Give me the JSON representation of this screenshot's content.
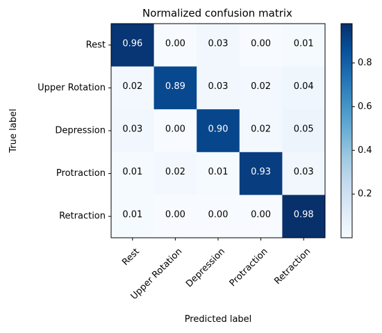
{
  "chart_data": {
    "type": "heatmap",
    "title": "Normalized confusion matrix",
    "xlabel": "Predicted label",
    "ylabel": "True label",
    "x_categories": [
      "Rest",
      "Upper Rotation",
      "Depression",
      "Protraction",
      "Retraction"
    ],
    "y_categories": [
      "Rest",
      "Upper Rotation",
      "Depression",
      "Protraction",
      "Retraction"
    ],
    "values": [
      [
        0.96,
        0.0,
        0.03,
        0.0,
        0.01
      ],
      [
        0.02,
        0.89,
        0.03,
        0.02,
        0.04
      ],
      [
        0.03,
        0.0,
        0.9,
        0.02,
        0.05
      ],
      [
        0.01,
        0.02,
        0.01,
        0.93,
        0.03
      ],
      [
        0.01,
        0.0,
        0.0,
        0.0,
        0.98
      ]
    ],
    "value_labels": [
      [
        "0.96",
        "0.00",
        "0.03",
        "0.00",
        "0.01"
      ],
      [
        "0.02",
        "0.89",
        "0.03",
        "0.02",
        "0.04"
      ],
      [
        "0.03",
        "0.00",
        "0.90",
        "0.02",
        "0.05"
      ],
      [
        "0.01",
        "0.02",
        "0.01",
        "0.93",
        "0.03"
      ],
      [
        "0.01",
        "0.00",
        "0.00",
        "0.00",
        "0.98"
      ]
    ],
    "colormap": "Blues",
    "colorbar": {
      "range": [
        0.0,
        0.98
      ],
      "ticks": [
        0.2,
        0.4,
        0.6,
        0.8
      ],
      "tick_labels": [
        "0.2",
        "0.4",
        "0.6",
        "0.8"
      ]
    },
    "grid": false,
    "text_color_light": "#ffffff",
    "text_color_dark": "#000000"
  }
}
